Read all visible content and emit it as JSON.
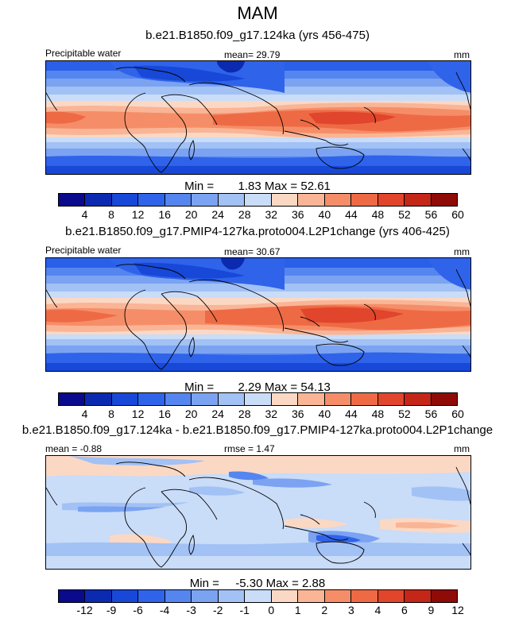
{
  "title": "MAM",
  "panels": [
    {
      "run_title": "b.e21.B1850.f09_g17.124ka (yrs 456-475)",
      "left_label": "Precipitable water",
      "center_label": "mean=  29.79",
      "units": "mm",
      "min_label": "Min =",
      "min_value": "1.83",
      "max_label": "Max =",
      "max_value": "52.61",
      "palette": "abs"
    },
    {
      "run_title": "b.e21.B1850.f09_g17.PMIP4-127ka.proto004.L2P1change (yrs 406-425)",
      "left_label": "Precipitable water",
      "center_label": "mean=  30.67",
      "units": "mm",
      "min_label": "Min =",
      "min_value": "2.29",
      "max_label": "Max =",
      "max_value": "54.13",
      "palette": "abs"
    },
    {
      "run_title": "b.e21.B1850.f09_g17.124ka - b.e21.B1850.f09_g17.PMIP4-127ka.proto004.L2P1change",
      "left_label": "mean =  -0.88",
      "center_label": "rmse =  1.47",
      "units": "mm",
      "min_label": "Min =",
      "min_value": "-5.30",
      "max_label": "Max =",
      "max_value": "2.88",
      "palette": "diff"
    }
  ],
  "colorbar_abs": {
    "ticks": [
      "4",
      "8",
      "12",
      "16",
      "20",
      "24",
      "28",
      "32",
      "36",
      "40",
      "44",
      "48",
      "52",
      "56",
      "60"
    ],
    "colors": [
      "#0a0a8c",
      "#0c2ab0",
      "#1848d8",
      "#2f63ea",
      "#5585ef",
      "#7ba3f2",
      "#a2c1f5",
      "#c9dcf8",
      "#fbd8c4",
      "#f9b596",
      "#f58e68",
      "#ee6a45",
      "#e1452c",
      "#c42617",
      "#8e0b07"
    ]
  },
  "colorbar_diff": {
    "ticks": [
      "-12",
      "-9",
      "-6",
      "-4",
      "-3",
      "-2",
      "-1",
      "0",
      "1",
      "2",
      "3",
      "4",
      "6",
      "9",
      "12"
    ],
    "colors": [
      "#0a0a8c",
      "#0c2ab0",
      "#1848d8",
      "#2f63ea",
      "#5585ef",
      "#7ba3f2",
      "#a2c1f5",
      "#c9dcf8",
      "#fbd8c4",
      "#f9b596",
      "#f58e68",
      "#ee6a45",
      "#e1452c",
      "#c42617",
      "#8e0b07"
    ]
  }
}
